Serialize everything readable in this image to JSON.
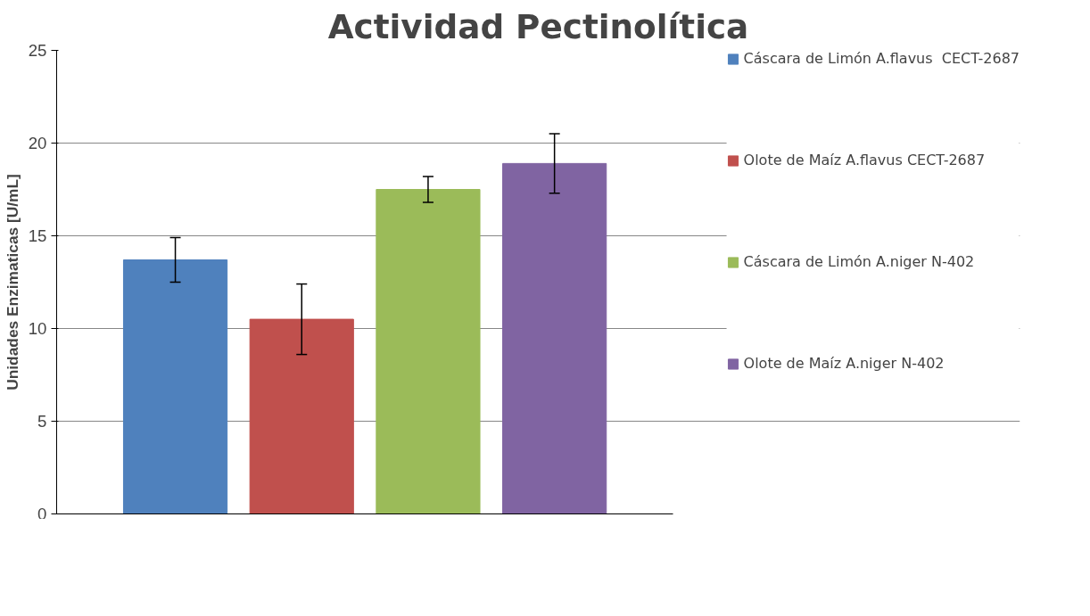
{
  "chart_data": {
    "type": "bar",
    "title": "Actividad Pectinolítica",
    "ylabel": "Unidades Enzimaticas [U/mL]",
    "categories": [
      null
    ],
    "series": [
      {
        "name": "Cáscara de Limón A.flavus  CECT-2687",
        "color": "#4f81bd",
        "values": [
          13.7
        ],
        "errors": [
          1.2
        ]
      },
      {
        "name": "Olote de Maíz A.flavus CECT-2687",
        "color": "#c0504d",
        "values": [
          10.5
        ],
        "errors": [
          1.9
        ]
      },
      {
        "name": "Cáscara de Limón A.niger N-402",
        "color": "#9bbb59",
        "values": [
          17.5
        ],
        "errors": [
          0.7
        ]
      },
      {
        "name": "Olote de Maíz A.niger N-402",
        "color": "#8064a2",
        "values": [
          18.9
        ],
        "errors": [
          1.6
        ]
      }
    ],
    "ylim": [
      0,
      25
    ],
    "yticks": [
      0,
      5,
      10,
      15,
      20,
      25
    ],
    "grid": "y",
    "legend": "right"
  }
}
